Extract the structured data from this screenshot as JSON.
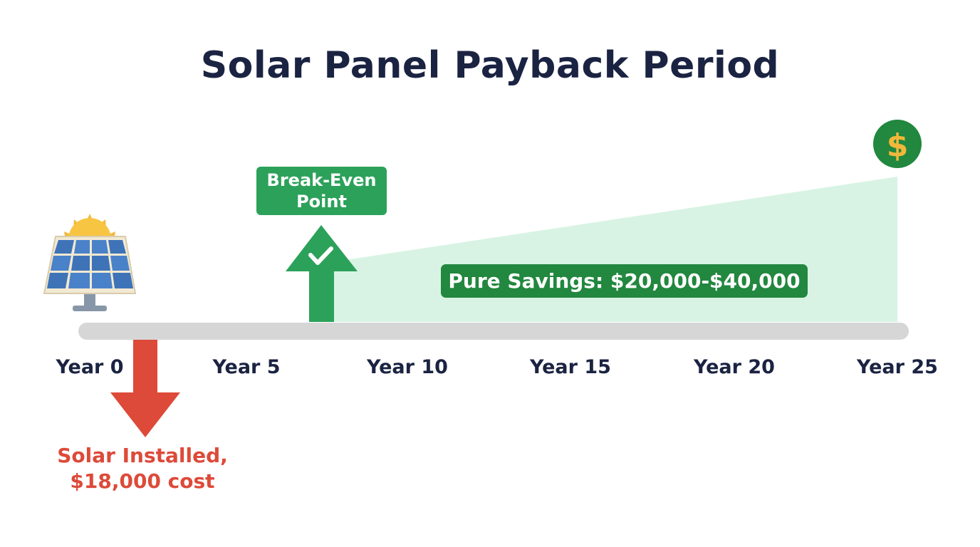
{
  "title": "Solar Panel Payback Period",
  "timeline": {
    "labels": [
      "Year 0",
      "Year 5",
      "Year 10",
      "Year 15",
      "Year 20",
      "Year 25"
    ]
  },
  "break_even": {
    "line1": "Break-Even",
    "line2": "Point"
  },
  "savings": {
    "label": "Pure Savings: $20,000-$40,000"
  },
  "installation": {
    "line1": "Solar Installed,",
    "line2": "$18,000 cost"
  },
  "icons": {
    "start": "solar-panel-icon",
    "end": "dollar-coin-icon",
    "break_even_mark": "checkmark-icon",
    "cost_arrow": "arrow-down-icon",
    "gain_arrow": "arrow-up-icon"
  },
  "colors": {
    "title": "#1b2342",
    "green": "#2ca15a",
    "dark_green": "#22873f",
    "savings_area": "#d8f3e3",
    "red": "#dd4a39",
    "timeline": "#d6d6d6"
  }
}
